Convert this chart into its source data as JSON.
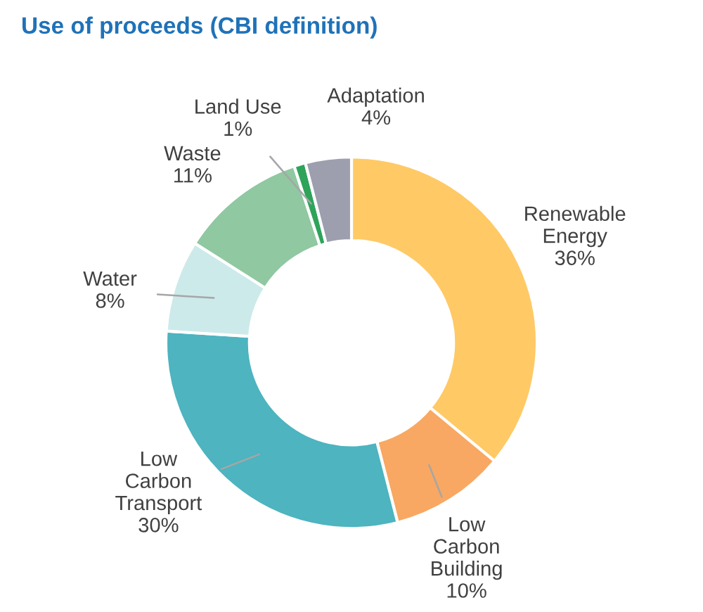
{
  "chart_data": {
    "type": "donut",
    "title": "Use of proceeds (CBI definition)",
    "categories": [
      "Renewable\nEnergy",
      "Low\nCarbon\nBuilding",
      "Low\nCarbon\nTransport",
      "Water",
      "Waste",
      "Land Use",
      "Adaptation"
    ],
    "values": [
      36,
      10,
      30,
      8,
      11,
      1,
      4
    ],
    "value_labels": [
      "36%",
      "10%",
      "30%",
      "8%",
      "11%",
      "1%",
      "4%"
    ],
    "colors": [
      "#ffc966",
      "#f8a862",
      "#4db4c0",
      "#cdeaea",
      "#8fc8a1",
      "#2ea35a",
      "#9d9fae"
    ]
  }
}
